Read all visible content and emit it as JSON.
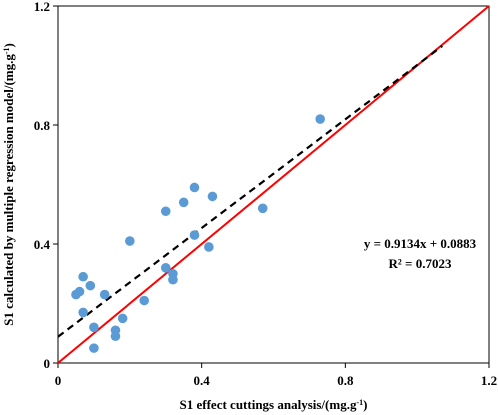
{
  "chart_data": {
    "type": "scatter",
    "title": "",
    "xlabel": "S1 effect cuttings analysis/(mg.g",
    "xlabel_sup": "-1",
    "xlabel_tail": ")",
    "ylabel": "S1 calculated by multiple regression model/(mg.g",
    "ylabel_sup": "-1",
    "ylabel_tail": ")",
    "xlim": [
      0,
      1.2
    ],
    "ylim": [
      0,
      1.2
    ],
    "x_ticks": [
      0,
      0.4,
      0.8,
      1.2
    ],
    "y_ticks": [
      0,
      0.4,
      0.8,
      1.2
    ],
    "x_tick_labels": [
      "0",
      "0.4",
      "0.8",
      "1.2"
    ],
    "y_tick_labels": [
      "0",
      "0.4",
      "0.8",
      "1.2"
    ],
    "grid": false,
    "point_color": "#5b9bd5",
    "fit_line_color": "#000000",
    "identity_line_color": "#ff0000",
    "series": [
      {
        "name": "",
        "x": [
          0.73,
          0.57,
          0.38,
          0.43,
          0.35,
          0.3,
          0.38,
          0.42,
          0.2,
          0.3,
          0.32,
          0.32,
          0.24,
          0.13,
          0.09,
          0.07,
          0.06,
          0.05,
          0.07,
          0.18,
          0.1,
          0.16,
          0.16,
          0.1
        ],
        "y": [
          0.82,
          0.52,
          0.59,
          0.56,
          0.54,
          0.51,
          0.43,
          0.39,
          0.41,
          0.32,
          0.3,
          0.28,
          0.21,
          0.23,
          0.26,
          0.29,
          0.24,
          0.23,
          0.17,
          0.15,
          0.12,
          0.11,
          0.09,
          0.05
        ]
      }
    ],
    "fit_line": {
      "slope": 0.9134,
      "intercept": 0.0883,
      "x_range": [
        0,
        1.07
      ],
      "style": "dashed"
    },
    "identity_line": {
      "x_range": [
        0,
        1.2
      ],
      "style": "solid"
    },
    "annotations": {
      "equation": "y = 0.9134x + 0.0883",
      "r_squared": "R² = 0.7023"
    }
  }
}
